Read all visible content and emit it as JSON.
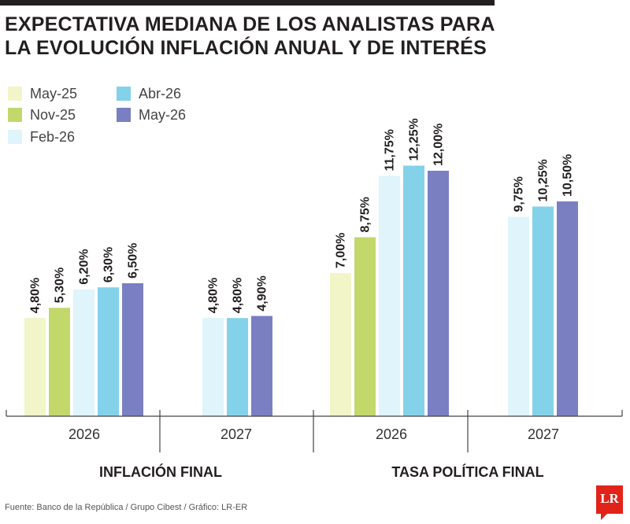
{
  "title_lines": [
    "EXPECTATIVA MEDIANA DE LOS ANALISTAS PARA",
    "LA EVOLUCIÓN INFLACIÓN ANUAL Y DE INTERÉS"
  ],
  "source": "Fuente: Banco de la República / Grupo Cibest / Gráfico: LR-ER",
  "logo_text": "LR",
  "chart_data": {
    "type": "bar",
    "title": "EXPECTATIVA MEDIANA DE LOS ANALISTAS PARA LA EVOLUCIÓN INFLACIÓN ANUAL Y DE INTERÉS",
    "legend_position": "top-left",
    "grid": false,
    "ylim": [
      0,
      14
    ],
    "colors": {
      "May-25": "#f1f5c7",
      "Nov-25": "#c3d86b",
      "Feb-26": "#dff4fb",
      "Abr-26": "#84d2ea",
      "May-26": "#7a7fc2"
    },
    "series_names": [
      "May-25",
      "Nov-25",
      "Feb-26",
      "Abr-26",
      "May-26"
    ],
    "groups": [
      {
        "label": "INFLACIÓN FINAL",
        "categories": [
          {
            "label": "2026",
            "bars": [
              {
                "series": "May-25",
                "value": 4.8,
                "label": "4,80%"
              },
              {
                "series": "Nov-25",
                "value": 5.3,
                "label": "5,30%"
              },
              {
                "series": "Feb-26",
                "value": 6.2,
                "label": "6,20%"
              },
              {
                "series": "Abr-26",
                "value": 6.3,
                "label": "6,30%"
              },
              {
                "series": "May-26",
                "value": 6.5,
                "label": "6,50%"
              }
            ]
          },
          {
            "label": "2027",
            "bars": [
              {
                "series": "Feb-26",
                "value": 4.8,
                "label": "4,80%"
              },
              {
                "series": "Abr-26",
                "value": 4.8,
                "label": "4,80%"
              },
              {
                "series": "May-26",
                "value": 4.9,
                "label": "4,90%"
              }
            ]
          }
        ]
      },
      {
        "label": "TASA POLÍTICA FINAL",
        "categories": [
          {
            "label": "2026",
            "bars": [
              {
                "series": "May-25",
                "value": 7.0,
                "label": "7,00%"
              },
              {
                "series": "Nov-25",
                "value": 8.75,
                "label": "8,75%"
              },
              {
                "series": "Feb-26",
                "value": 11.75,
                "label": "11,75%"
              },
              {
                "series": "Abr-26",
                "value": 12.25,
                "label": "12,25%"
              },
              {
                "series": "May-26",
                "value": 12.0,
                "label": "12,00%"
              }
            ]
          },
          {
            "label": "2027",
            "bars": [
              {
                "series": "Feb-26",
                "value": 9.75,
                "label": "9,75%"
              },
              {
                "series": "Abr-26",
                "value": 10.25,
                "label": "10,25%"
              },
              {
                "series": "May-26",
                "value": 10.5,
                "label": "10,50%"
              }
            ]
          }
        ]
      }
    ]
  }
}
